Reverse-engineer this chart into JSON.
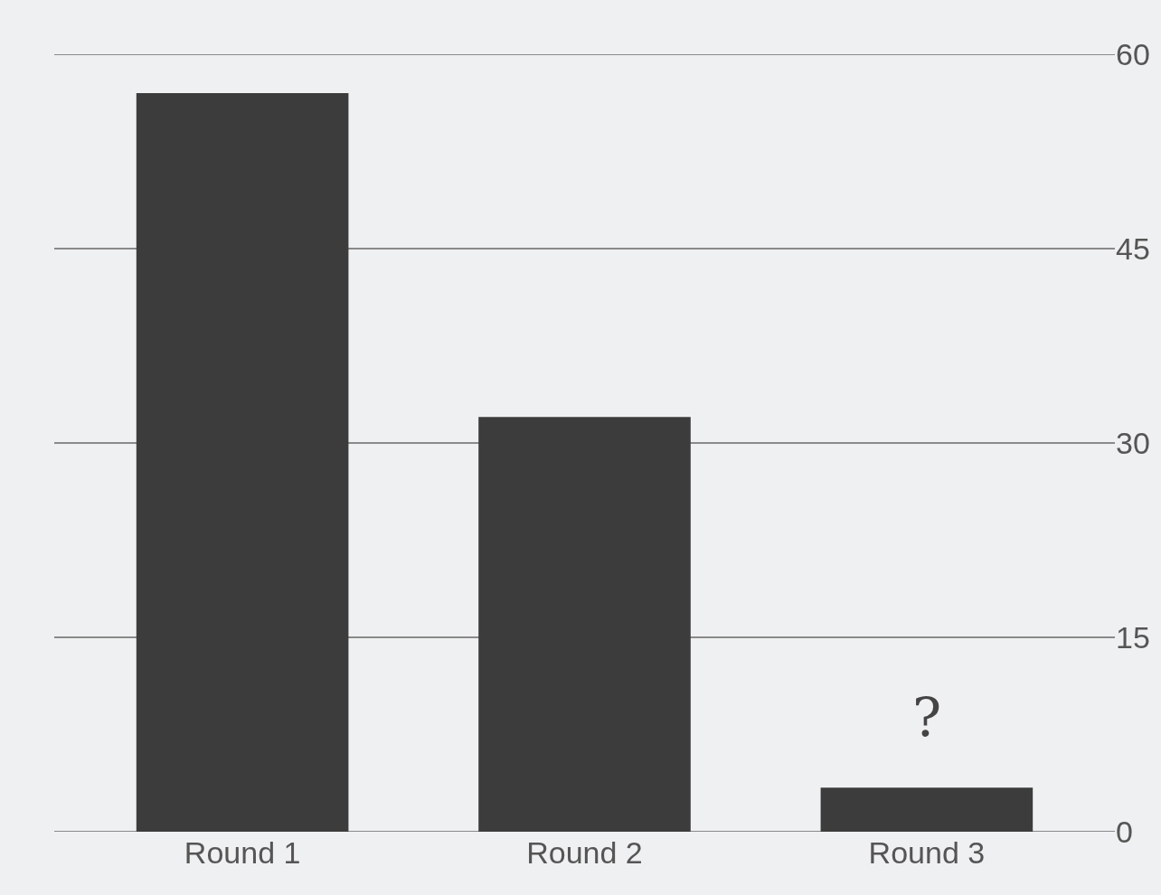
{
  "chart_data": {
    "type": "bar",
    "categories": [
      "Round 1",
      "Round 2",
      "Round 3"
    ],
    "values": [
      57,
      32,
      3.4
    ],
    "color": "#3c3c3c",
    "ylim": [
      0,
      60
    ],
    "yticks": [
      0,
      15,
      30,
      45,
      60
    ],
    "grid": "y",
    "annotations": [
      "?"
    ]
  }
}
